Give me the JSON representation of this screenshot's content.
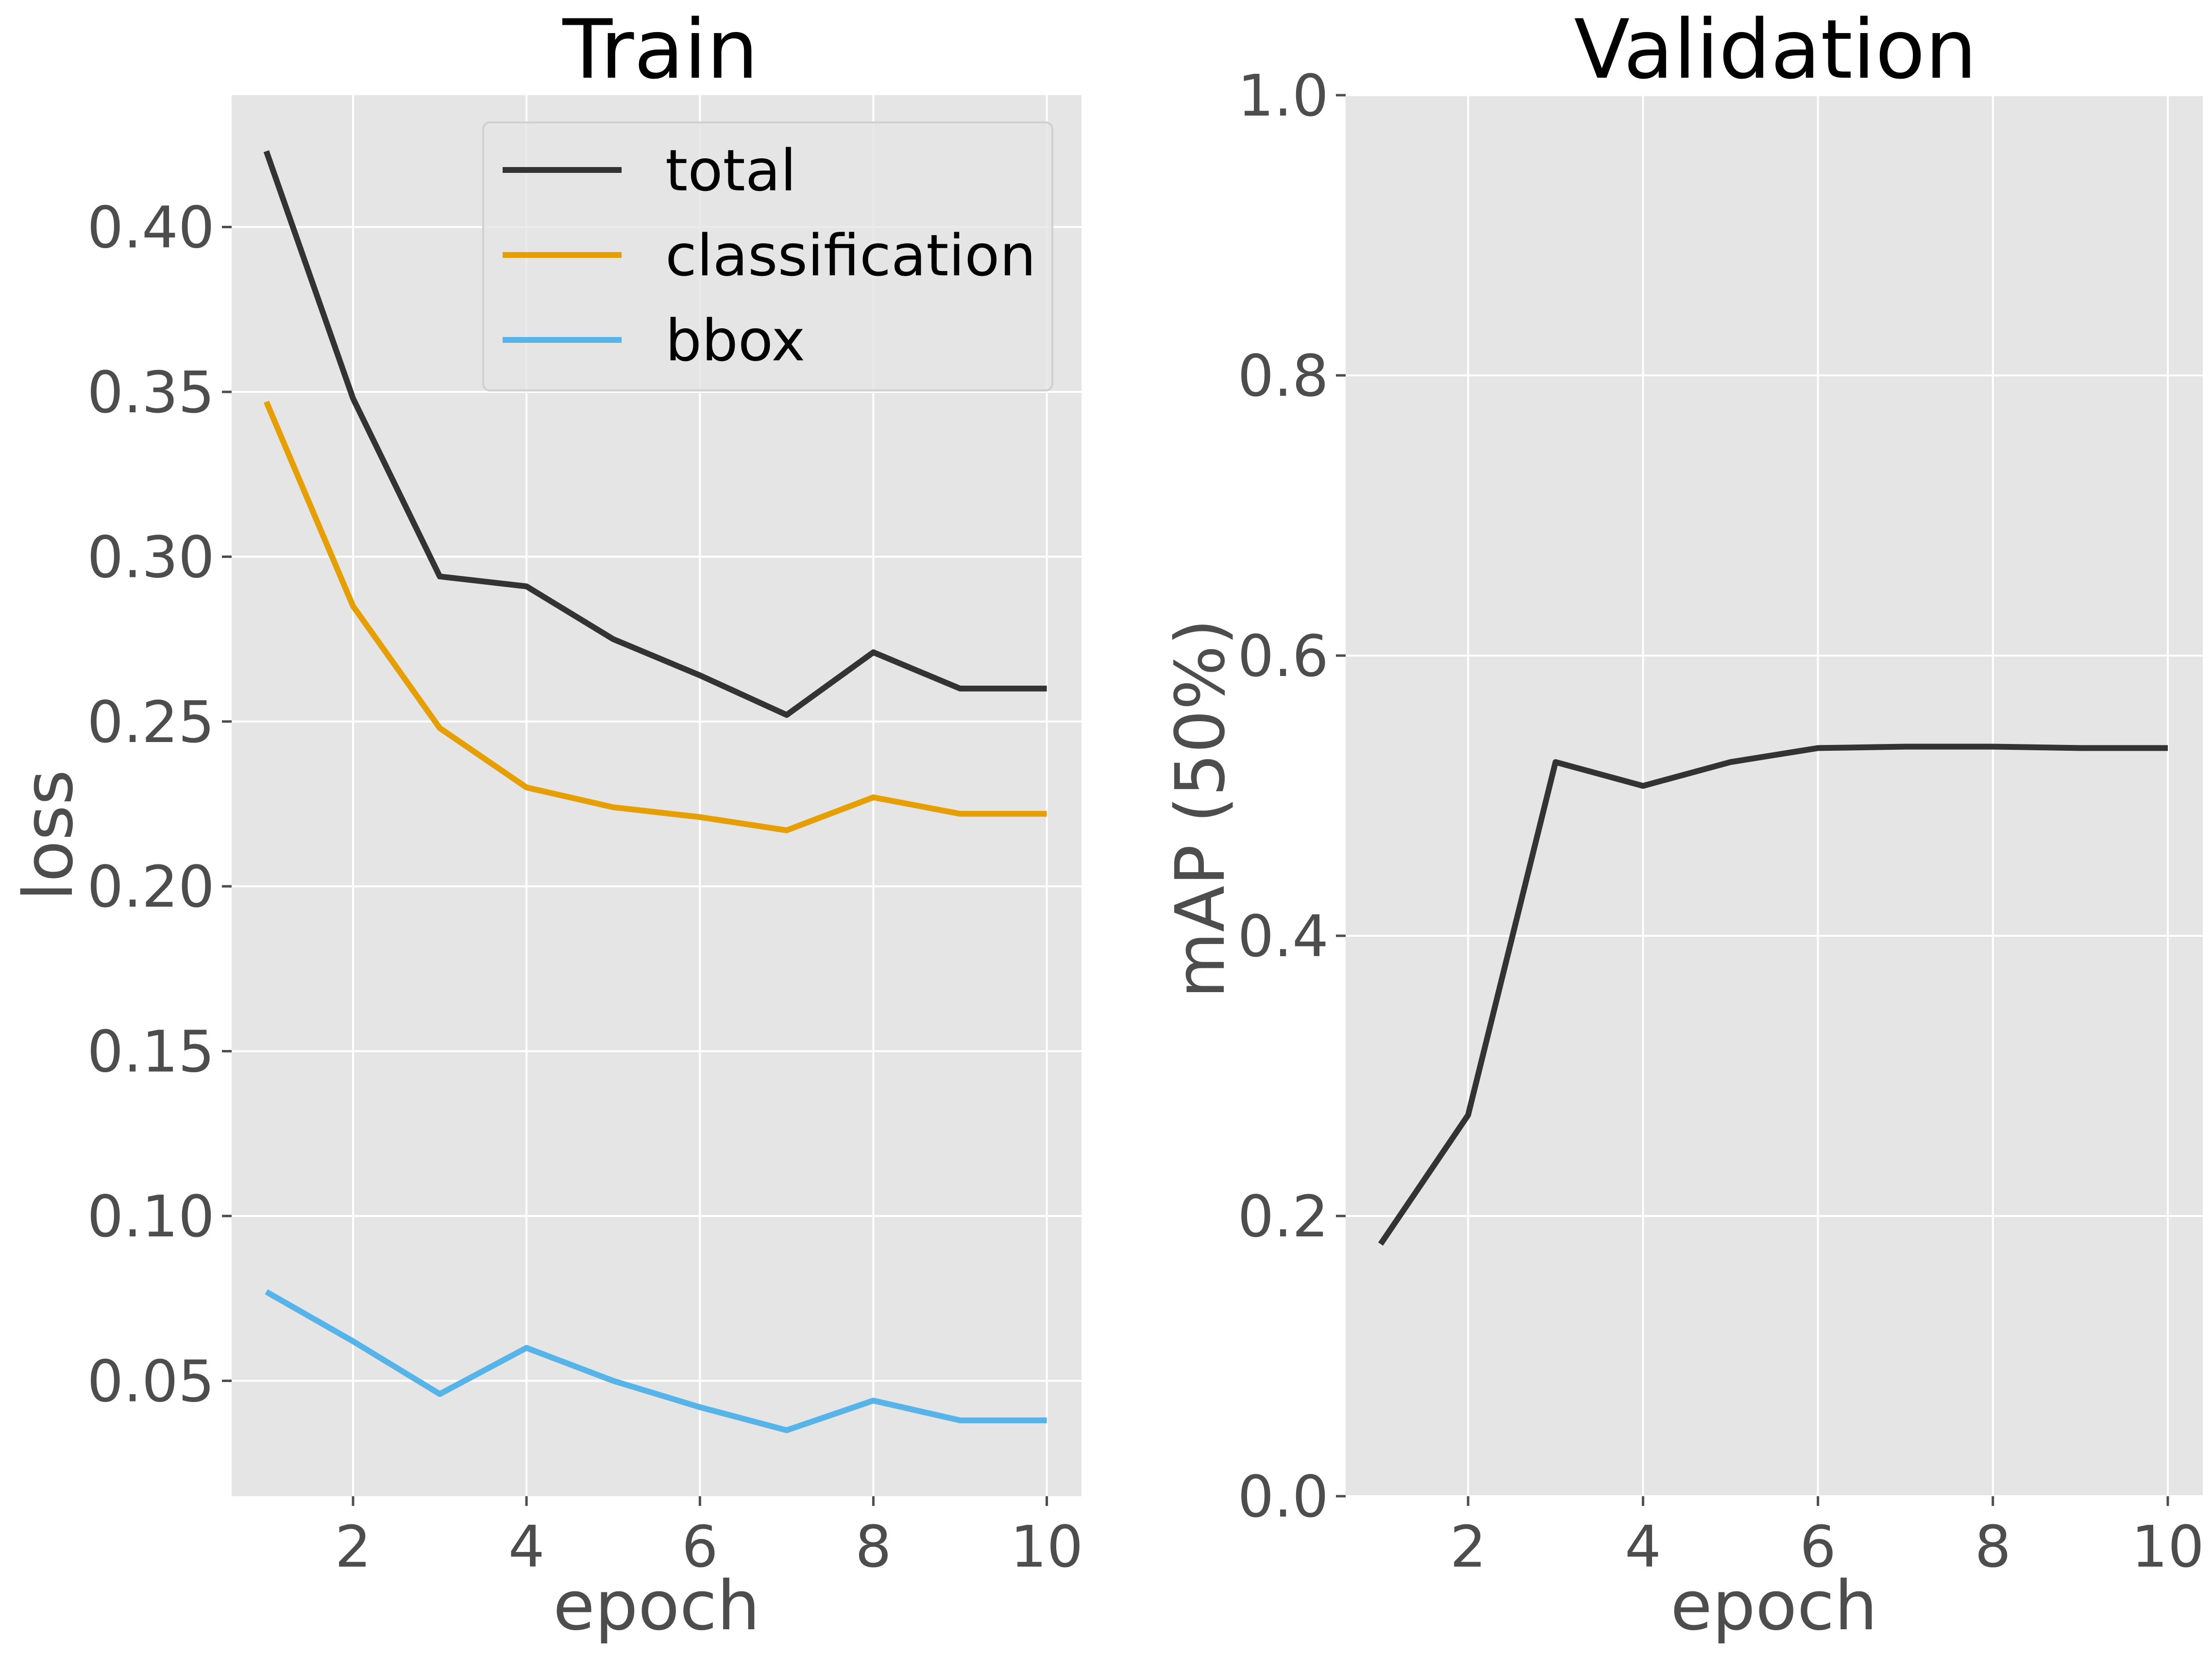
{
  "chart_data": [
    {
      "type": "line",
      "title": "Train",
      "xlabel": "epoch",
      "ylabel": "loss",
      "grid": true,
      "legend_placement": "top-right",
      "xlim": [
        0.6,
        10.4
      ],
      "ylim": [
        0.015,
        0.44
      ],
      "xticks": [
        2,
        4,
        6,
        8,
        10
      ],
      "yticks": [
        0.05,
        0.1,
        0.15,
        0.2,
        0.25,
        0.3,
        0.35,
        0.4
      ],
      "ytick_labels": [
        "0.05",
        "0.10",
        "0.15",
        "0.20",
        "0.25",
        "0.30",
        "0.35",
        "0.40"
      ],
      "x": [
        1,
        2,
        3,
        4,
        5,
        6,
        7,
        8,
        9,
        10
      ],
      "series": [
        {
          "name": "total",
          "color": "#333333",
          "values": [
            0.423,
            0.348,
            0.294,
            0.291,
            0.275,
            0.264,
            0.252,
            0.271,
            0.26,
            0.26
          ]
        },
        {
          "name": "classification",
          "color": "#e69f00",
          "values": [
            0.347,
            0.285,
            0.248,
            0.23,
            0.224,
            0.221,
            0.217,
            0.227,
            0.222,
            0.222
          ]
        },
        {
          "name": "bbox",
          "color": "#56b4e9",
          "values": [
            0.077,
            0.062,
            0.046,
            0.06,
            0.05,
            0.042,
            0.035,
            0.044,
            0.038,
            0.038
          ]
        }
      ]
    },
    {
      "type": "line",
      "title": "Validation",
      "xlabel": "epoch",
      "ylabel": "mAP (50%)",
      "grid": true,
      "xlim": [
        0.6,
        10.4
      ],
      "ylim": [
        0.0,
        1.0
      ],
      "xticks": [
        2,
        4,
        6,
        8,
        10
      ],
      "yticks": [
        0.0,
        0.2,
        0.4,
        0.6,
        0.8,
        1.0
      ],
      "ytick_labels": [
        "0.0",
        "0.2",
        "0.4",
        "0.6",
        "0.8",
        "1.0"
      ],
      "x": [
        1,
        2,
        3,
        4,
        5,
        6,
        7,
        8,
        9,
        10
      ],
      "series": [
        {
          "name": "mAP",
          "color": "#333333",
          "values": [
            0.18,
            0.272,
            0.524,
            0.507,
            0.524,
            0.534,
            0.535,
            0.535,
            0.534,
            0.534
          ]
        }
      ]
    }
  ]
}
